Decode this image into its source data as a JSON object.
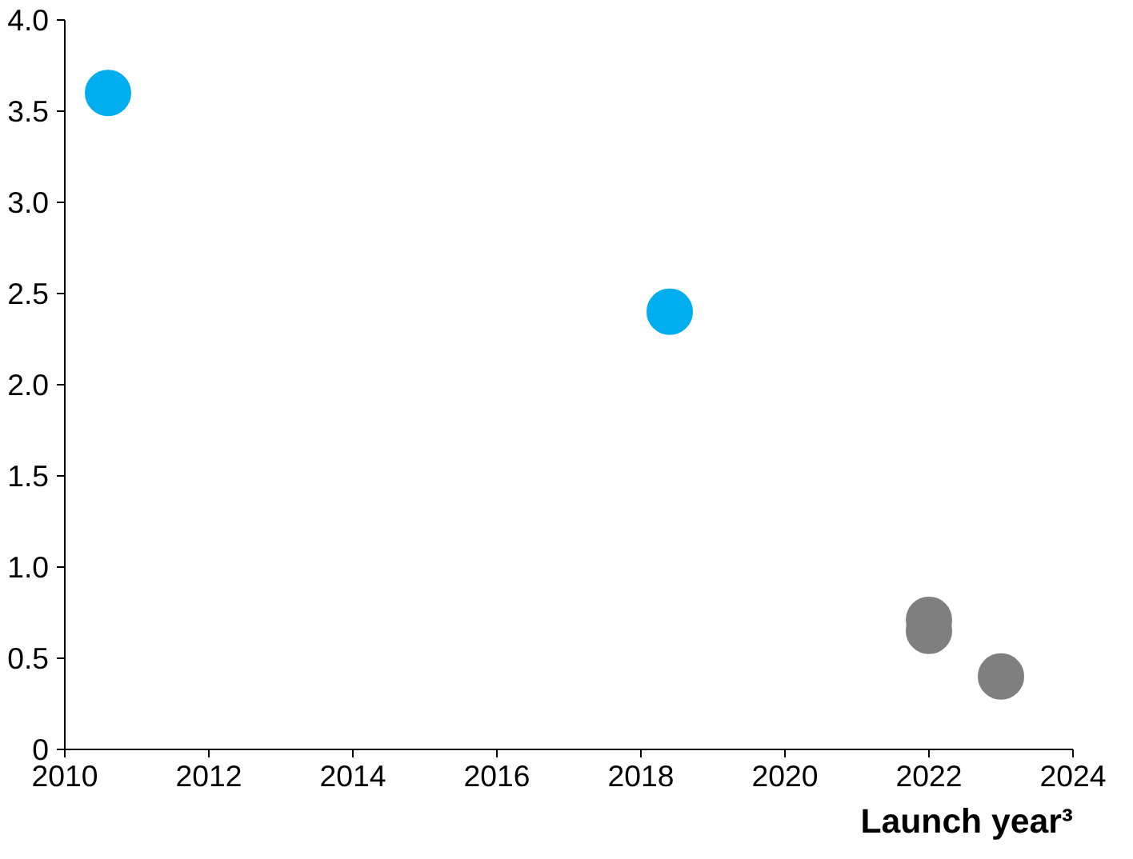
{
  "chart_data": {
    "type": "scatter",
    "xlabel": "Launch year³",
    "series": [
      {
        "color": "#00aeef",
        "x": [
          2010.6,
          2018.4
        ],
        "values": [
          3.6,
          2.4
        ]
      },
      {
        "color": "#7f7f7f",
        "x": [
          2022.0,
          2022.0,
          2023.0
        ],
        "values": [
          0.65,
          0.71,
          0.4
        ]
      }
    ],
    "xlim": [
      2010,
      2024
    ],
    "xticks": [
      2010,
      2012,
      2014,
      2016,
      2018,
      2020,
      2022,
      2024
    ],
    "ylim": [
      0,
      4
    ],
    "yticks": [
      0,
      {
        "value": 0.5,
        "label": "0.5"
      },
      {
        "value": 1,
        "label": "1.0"
      },
      {
        "value": 1.5,
        "label": "1.5"
      },
      {
        "value": 2,
        "label": "2.0"
      },
      {
        "value": 2.5,
        "label": "2.5"
      },
      {
        "value": 3,
        "label": "3.0"
      },
      {
        "value": 3.5,
        "label": "3.5"
      },
      {
        "value": 4,
        "label": "4.0"
      }
    ],
    "grid": false,
    "marker": "circle"
  }
}
